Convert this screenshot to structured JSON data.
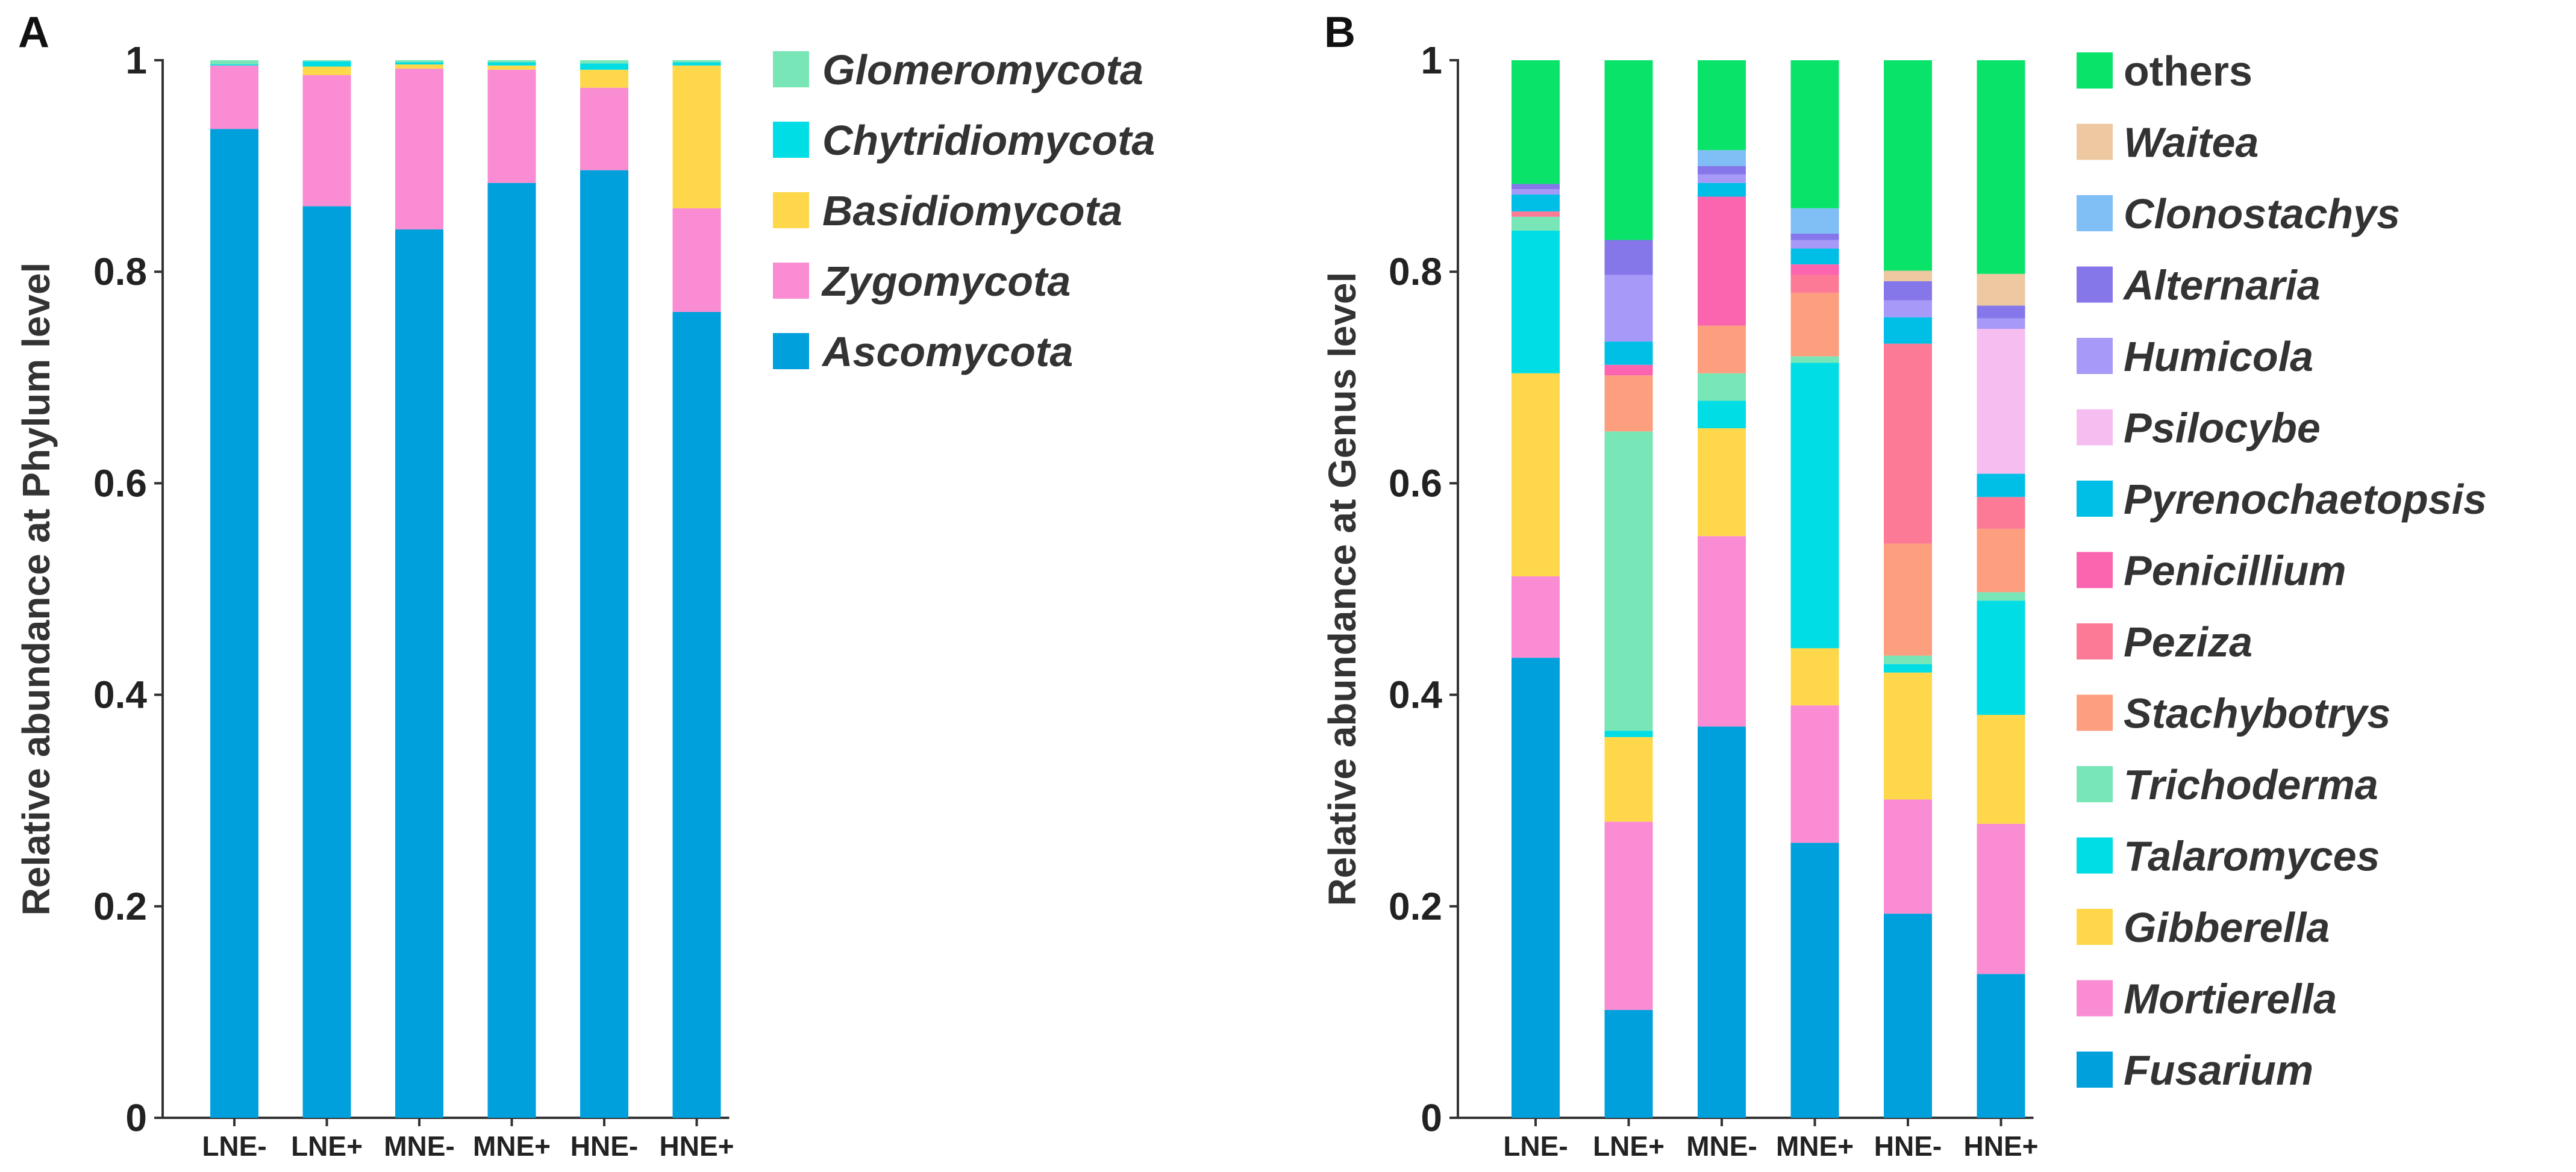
{
  "chart_data": [
    {
      "type": "bar",
      "stacked": true,
      "panel": "A",
      "title": "",
      "xlabel": "",
      "ylabel": "Relative abundance at Phylum level",
      "ylim": [
        0,
        1
      ],
      "yticks": [
        "0",
        "0.2",
        "0.4",
        "0.6",
        "0.8",
        "1"
      ],
      "categories": [
        "LNE-",
        "LNE+",
        "MNE-",
        "MNE+",
        "HNE-",
        "HNE+"
      ],
      "series": [
        {
          "name": "Ascomycota",
          "color": "#00A0DC",
          "values": [
            0.935,
            0.862,
            0.84,
            0.884,
            0.896,
            0.762
          ]
        },
        {
          "name": "Zygomycota",
          "color": "#F98CD2",
          "values": [
            0.06,
            0.124,
            0.152,
            0.107,
            0.078,
            0.098
          ]
        },
        {
          "name": "Basidiomycota",
          "color": "#FED84A",
          "values": [
            0.0,
            0.008,
            0.004,
            0.004,
            0.017,
            0.135
          ]
        },
        {
          "name": "Chytridiomycota",
          "color": "#00DDE5",
          "values": [
            0.001,
            0.005,
            0.002,
            0.003,
            0.006,
            0.003
          ]
        },
        {
          "name": "Glomeromycota",
          "color": "#78E6B6",
          "values": [
            0.004,
            0.001,
            0.002,
            0.002,
            0.003,
            0.002
          ]
        }
      ],
      "legend": [
        "Glomeromycota",
        "Chytridiomycota",
        "Basidiomycota",
        "Zygomycota",
        "Ascomycota"
      ],
      "legend_position": "right"
    },
    {
      "type": "bar",
      "stacked": true,
      "panel": "B",
      "title": "",
      "xlabel": "",
      "ylabel": "Relative abundance at Genus level",
      "ylim": [
        0,
        1
      ],
      "yticks": [
        "0",
        "0.2",
        "0.4",
        "0.6",
        "0.8",
        "1"
      ],
      "categories": [
        "LNE-",
        "LNE+",
        "MNE-",
        "MNE+",
        "HNE-",
        "HNE+"
      ],
      "series": [
        {
          "name": "Fusarium",
          "color": "#00A0DC",
          "values": [
            0.435,
            0.102,
            0.37,
            0.26,
            0.193,
            0.136
          ]
        },
        {
          "name": "Mortierella",
          "color": "#F98CD2",
          "values": [
            0.077,
            0.178,
            0.18,
            0.13,
            0.108,
            0.142
          ]
        },
        {
          "name": "Gibberella",
          "color": "#FED84A",
          "values": [
            0.192,
            0.08,
            0.102,
            0.054,
            0.12,
            0.103
          ]
        },
        {
          "name": "Talaromyces",
          "color": "#00DDE5",
          "values": [
            0.135,
            0.006,
            0.026,
            0.27,
            0.008,
            0.108
          ]
        },
        {
          "name": "Trichoderma",
          "color": "#78E6B6",
          "values": [
            0.013,
            0.283,
            0.026,
            0.006,
            0.008,
            0.008
          ]
        },
        {
          "name": "Stachybotrys",
          "color": "#FD9E7E",
          "values": [
            0.0,
            0.053,
            0.045,
            0.06,
            0.106,
            0.06
          ]
        },
        {
          "name": "Peziza",
          "color": "#FD7A96",
          "values": [
            0.005,
            0.0,
            0.0,
            0.017,
            0.189,
            0.03
          ]
        },
        {
          "name": "Penicillium",
          "color": "#FB65B0",
          "values": [
            0.0,
            0.01,
            0.122,
            0.01,
            0.0,
            0.0
          ]
        },
        {
          "name": "Pyrenochaetopsis",
          "color": "#00BFE6",
          "values": [
            0.016,
            0.022,
            0.013,
            0.015,
            0.025,
            0.022
          ]
        },
        {
          "name": "Psilocybe",
          "color": "#F6BDF0",
          "values": [
            0.0,
            0.0,
            0.0,
            0.0,
            0.0,
            0.137
          ]
        },
        {
          "name": "Humicola",
          "color": "#A699F7",
          "values": [
            0.005,
            0.063,
            0.008,
            0.008,
            0.016,
            0.01
          ]
        },
        {
          "name": "Alternaria",
          "color": "#8577EA",
          "values": [
            0.005,
            0.033,
            0.008,
            0.006,
            0.018,
            0.012
          ]
        },
        {
          "name": "Clonostachys",
          "color": "#80BEF6",
          "values": [
            0.0,
            0.0,
            0.015,
            0.024,
            0.0,
            0.0
          ]
        },
        {
          "name": "Waitea",
          "color": "#EEC8A0",
          "values": [
            0.0,
            0.0,
            0.0,
            0.0,
            0.01,
            0.03
          ]
        },
        {
          "name": "others",
          "color": "#09E36A",
          "values": [
            0.117,
            0.17,
            0.085,
            0.14,
            0.199,
            0.202
          ]
        }
      ],
      "legend": [
        "others",
        "Waitea",
        "Clonostachys",
        "Alternaria",
        "Humicola",
        "Psilocybe",
        "Pyrenochaetopsis",
        "Penicillium",
        "Peziza",
        "Stachybotrys",
        "Trichoderma",
        "Talaromyces",
        "Gibberella",
        "Mortierella",
        "Fusarium"
      ],
      "legend_position": "right"
    }
  ]
}
